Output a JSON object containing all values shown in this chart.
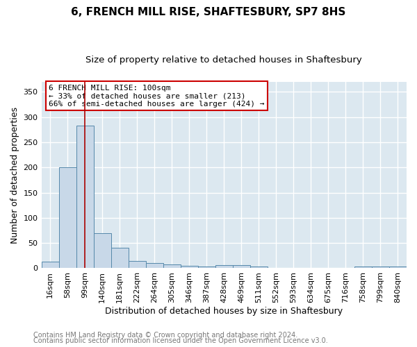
{
  "title": "6, FRENCH MILL RISE, SHAFTESBURY, SP7 8HS",
  "subtitle": "Size of property relative to detached houses in Shaftesbury",
  "xlabel": "Distribution of detached houses by size in Shaftesbury",
  "ylabel": "Number of detached properties",
  "footer1": "Contains HM Land Registry data © Crown copyright and database right 2024.",
  "footer2": "Contains public sector information licensed under the Open Government Licence v3.0.",
  "categories": [
    "16sqm",
    "58sqm",
    "99sqm",
    "140sqm",
    "181sqm",
    "222sqm",
    "264sqm",
    "305sqm",
    "346sqm",
    "387sqm",
    "428sqm",
    "469sqm",
    "511sqm",
    "552sqm",
    "593sqm",
    "634sqm",
    "675sqm",
    "716sqm",
    "758sqm",
    "799sqm",
    "840sqm"
  ],
  "values": [
    13,
    200,
    283,
    70,
    40,
    14,
    10,
    7,
    5,
    4,
    6,
    6,
    3,
    1,
    1,
    0,
    0,
    0,
    3,
    3,
    3
  ],
  "bar_color": "#c8d8e8",
  "bar_edge_color": "#5588aa",
  "highlight_index": 2,
  "highlight_line_color": "#aa0000",
  "annotation_text": "6 FRENCH MILL RISE: 100sqm\n← 33% of detached houses are smaller (213)\n66% of semi-detached houses are larger (424) →",
  "annotation_box_facecolor": "#ffffff",
  "annotation_box_edgecolor": "#cc0000",
  "ylim": [
    0,
    370
  ],
  "yticks": [
    0,
    50,
    100,
    150,
    200,
    250,
    300,
    350
  ],
  "plot_bg_color": "#dce8f0",
  "fig_bg_color": "#ffffff",
  "grid_color": "#ffffff",
  "title_fontsize": 11,
  "subtitle_fontsize": 9.5,
  "axis_label_fontsize": 9,
  "tick_fontsize": 8,
  "annotation_fontsize": 8,
  "footer_fontsize": 7,
  "footer_color": "#777777"
}
